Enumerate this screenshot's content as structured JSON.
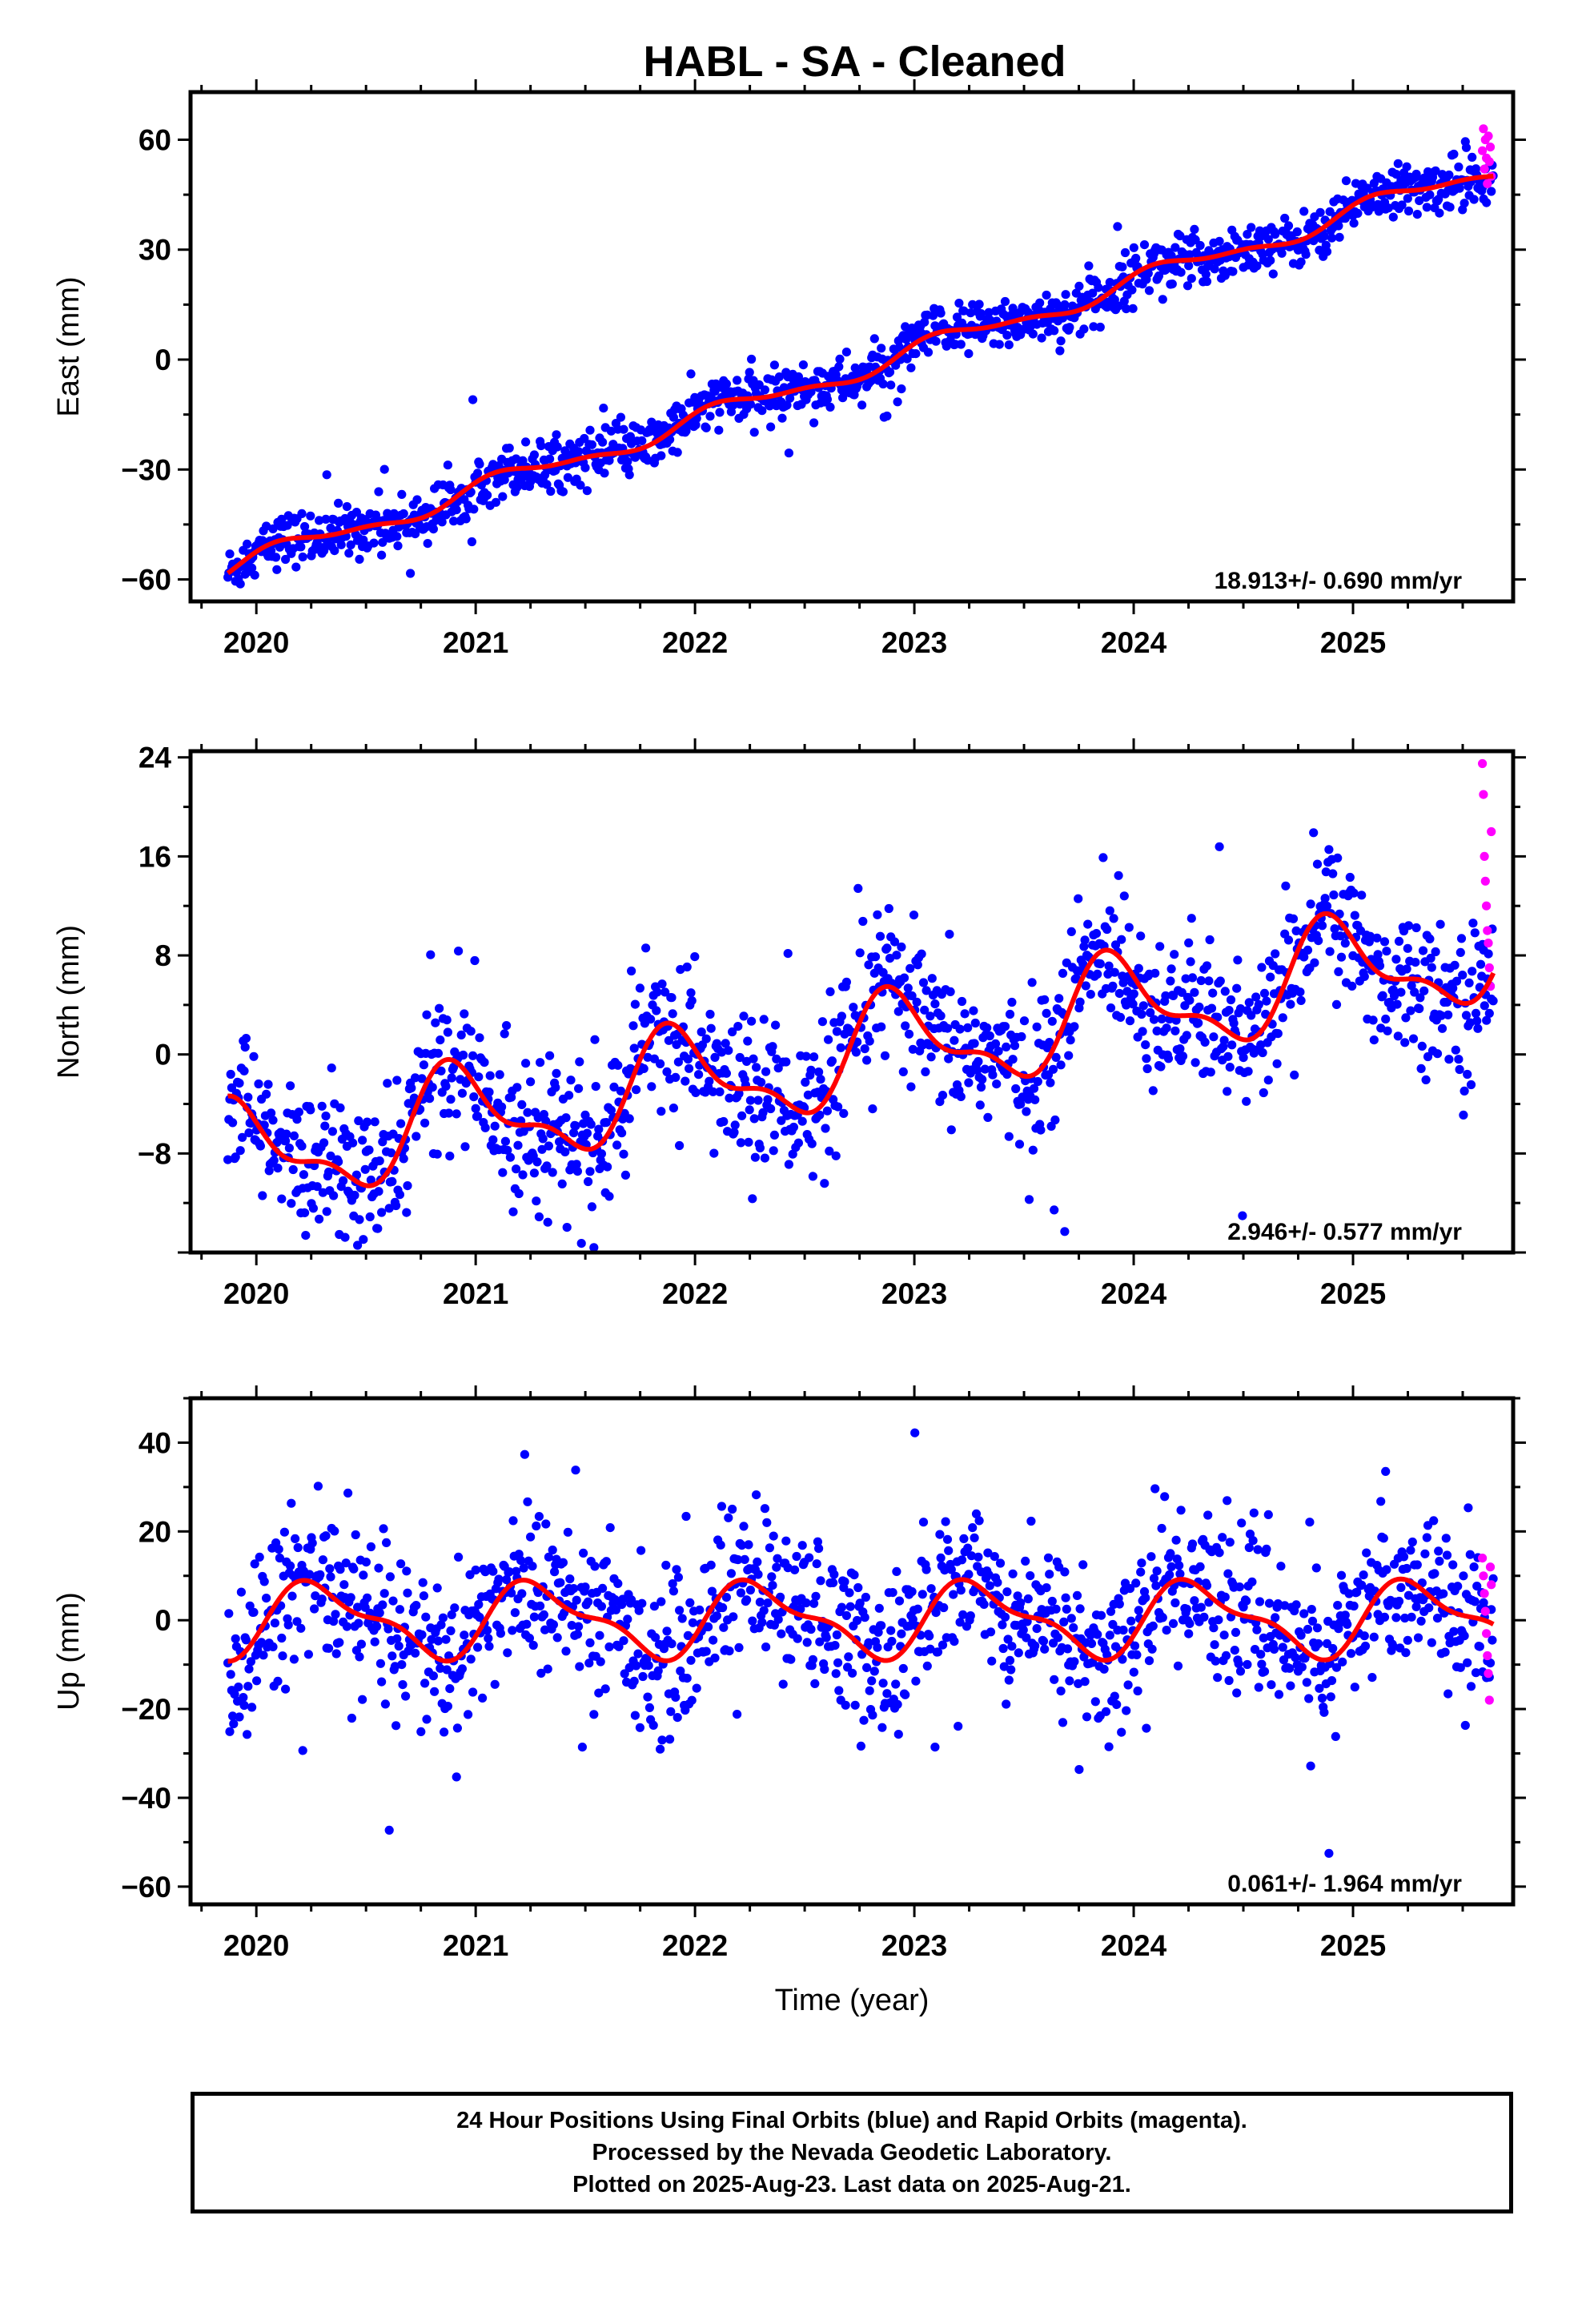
{
  "title": "HABL  - SA - Cleaned",
  "colors": {
    "final": "#0000ff",
    "rapid": "#ff00ff",
    "fit": "#ff0000"
  },
  "footer": {
    "line1": "24 Hour Positions Using Final Orbits (blue) and Rapid Orbits (magenta).",
    "line2": "Processed by the Nevada Geodetic Laboratory.",
    "line3": "Plotted on 2025-Aug-23. Last data on 2025-Aug-21."
  },
  "chart_data": [
    {
      "type": "scatter",
      "ylabel": "East (mm)",
      "rate": "18.913+/- 0.690 mm/yr",
      "xlim": [
        2019.7,
        2025.73
      ],
      "ylim": [
        -66,
        73
      ],
      "x_ticks": [
        2020,
        2021,
        2022,
        2023,
        2024,
        2025
      ],
      "y_ticks": [
        -60,
        -30,
        0,
        30,
        60
      ],
      "trend": {
        "start": {
          "x": 2019.87,
          "y": -57
        },
        "rate_mm_per_yr": 18.913
      },
      "seasonal": {
        "annual": 2.5,
        "semiannual": 1.0,
        "phase": 0.55
      },
      "scatter_sd": 3.5,
      "x_end": 2025.64,
      "rapid": {
        "x_start": 2025.59,
        "values": [
          57,
          63,
          52,
          60,
          55,
          48,
          61,
          54,
          58,
          50
        ]
      },
      "series": [
        {
          "name": "Final Orbits",
          "color": "#0000ff"
        },
        {
          "name": "Rapid Orbits",
          "color": "#ff00ff"
        },
        {
          "name": "Fit",
          "color": "#ff0000"
        }
      ]
    },
    {
      "type": "scatter",
      "ylabel": "North (mm)",
      "rate": "2.946+/- 0.577 mm/yr",
      "xlim": [
        2019.7,
        2025.73
      ],
      "ylim": [
        -16,
        24.5
      ],
      "x_ticks": [
        2020,
        2021,
        2022,
        2023,
        2024,
        2025
      ],
      "y_ticks": [
        -8,
        0,
        8,
        16,
        24
      ],
      "trend": {
        "start": {
          "x": 2019.87,
          "y": -8.5
        },
        "rate_mm_per_yr": 2.946
      },
      "seasonal": {
        "annual": 3.8,
        "semiannual": 1.6,
        "phase": 2.1
      },
      "scatter_sd": 3.0,
      "x_end": 2025.64,
      "rapid": {
        "x_start": 2025.59,
        "values": [
          23.5,
          21,
          16,
          14,
          12,
          10,
          9,
          7,
          5.5,
          18
        ]
      },
      "series": [
        {
          "name": "Final Orbits",
          "color": "#0000ff"
        },
        {
          "name": "Rapid Orbits",
          "color": "#ff00ff"
        },
        {
          "name": "Fit",
          "color": "#ff0000"
        }
      ]
    },
    {
      "type": "scatter",
      "ylabel": "Up (mm)",
      "xlabel": "Time (year)",
      "rate": "0.061+/- 1.964 mm/yr",
      "xlim": [
        2019.7,
        2025.73
      ],
      "ylim": [
        -64,
        50
      ],
      "x_ticks": [
        2020,
        2021,
        2022,
        2023,
        2024,
        2025
      ],
      "y_ticks": [
        -60,
        -40,
        -20,
        0,
        20,
        40
      ],
      "trend": {
        "start": {
          "x": 2019.87,
          "y": 0
        },
        "rate_mm_per_yr": 0.061
      },
      "seasonal": {
        "annual": 7.5,
        "semiannual": 3.0,
        "phase": -0.3
      },
      "scatter_sd": 9.0,
      "x_end": 2025.64,
      "rapid": {
        "x_start": 2025.59,
        "values": [
          14,
          10,
          6,
          2,
          -3,
          -8,
          -12,
          -18,
          12,
          8
        ]
      },
      "series": [
        {
          "name": "Final Orbits",
          "color": "#0000ff"
        },
        {
          "name": "Rapid Orbits",
          "color": "#ff00ff"
        },
        {
          "name": "Fit",
          "color": "#ff0000"
        }
      ]
    }
  ]
}
